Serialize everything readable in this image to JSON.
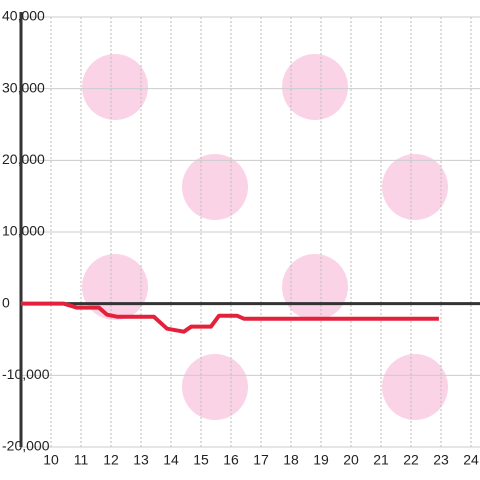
{
  "chart_data": {
    "type": "line",
    "x": [
      9,
      10.43,
      10.87,
      11.6,
      11.87,
      12.2,
      13.43,
      13.87,
      14.43,
      14.67,
      15.33,
      15.6,
      16.2,
      16.43,
      22.93
    ],
    "series": [
      {
        "color": "#e3213b",
        "values": [
          0,
          0,
          -560,
          -560,
          -1540,
          -1820,
          -1820,
          -3490,
          -3910,
          -3210,
          -3210,
          -1680,
          -1680,
          -2100,
          -2100
        ]
      }
    ],
    "xlim": [
      9,
      24.3
    ],
    "xticks": [
      10,
      11,
      12,
      13,
      14,
      15,
      16,
      17,
      18,
      19,
      20,
      21,
      22,
      23,
      24
    ],
    "ylim": [
      -20000,
      40000
    ],
    "yticks": [
      {
        "value": -20000,
        "label": "-20,000"
      },
      {
        "value": -10000,
        "label": "-10,000"
      },
      0,
      {
        "value": 10000,
        "label": "10,000"
      },
      {
        "value": 20000,
        "label": "20,000"
      },
      {
        "value": 30000,
        "label": "30,000"
      },
      {
        "value": 40000,
        "label": "40,000"
      }
    ],
    "grid": true
  }
}
